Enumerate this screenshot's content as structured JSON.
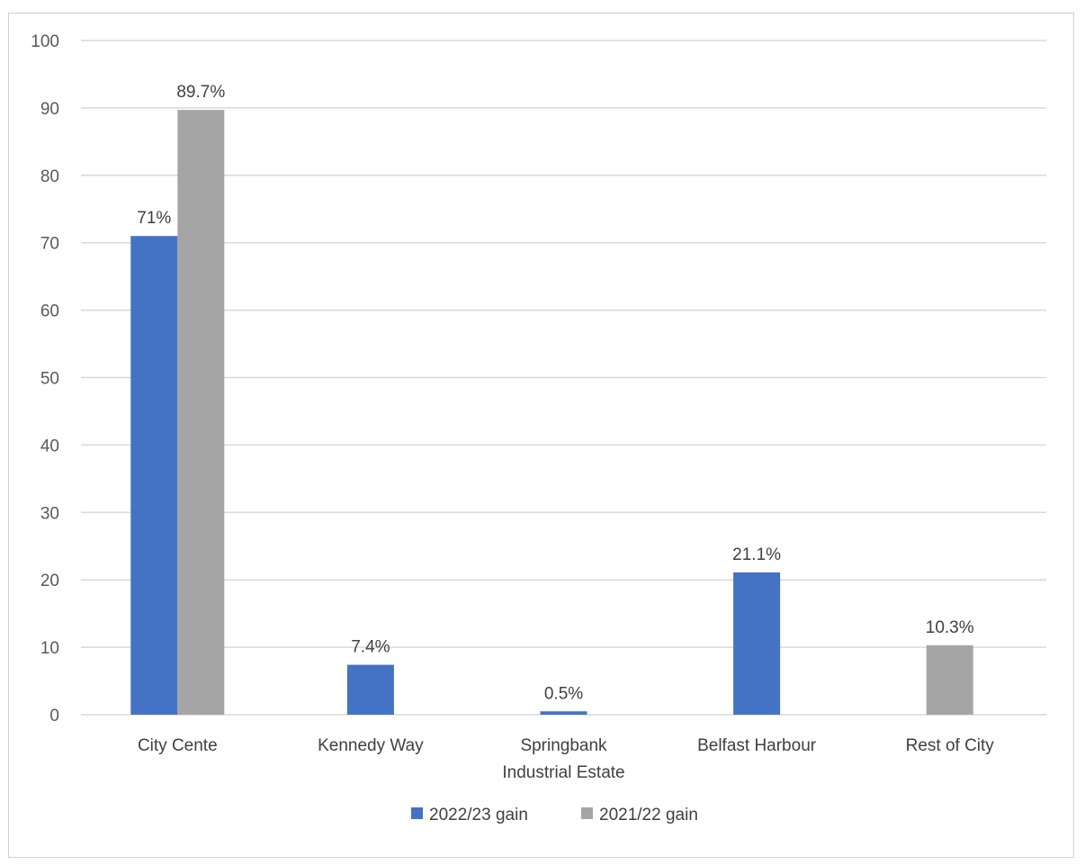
{
  "chart_data": {
    "type": "bar",
    "categories": [
      [
        "City Cente"
      ],
      [
        "Kennedy Way"
      ],
      [
        "Springbank",
        "Industrial Estate"
      ],
      [
        "Belfast Harbour"
      ],
      [
        "Rest of City"
      ]
    ],
    "series": [
      {
        "name": "2022/23 gain",
        "color": "#4472C4",
        "values": [
          71,
          7.4,
          0.5,
          21.1,
          null
        ],
        "labels": [
          "71%",
          "7.4%",
          "0.5%",
          "21.1%",
          null
        ]
      },
      {
        "name": "2021/22 gain",
        "color": "#A5A5A5",
        "values": [
          89.7,
          null,
          null,
          null,
          10.3
        ],
        "labels": [
          "89.7%",
          null,
          null,
          null,
          "10.3%"
        ]
      }
    ],
    "ylim": [
      0,
      100
    ],
    "yticks": [
      0,
      10,
      20,
      30,
      40,
      50,
      60,
      70,
      80,
      90,
      100
    ],
    "grid": true,
    "legend": "bottom"
  }
}
